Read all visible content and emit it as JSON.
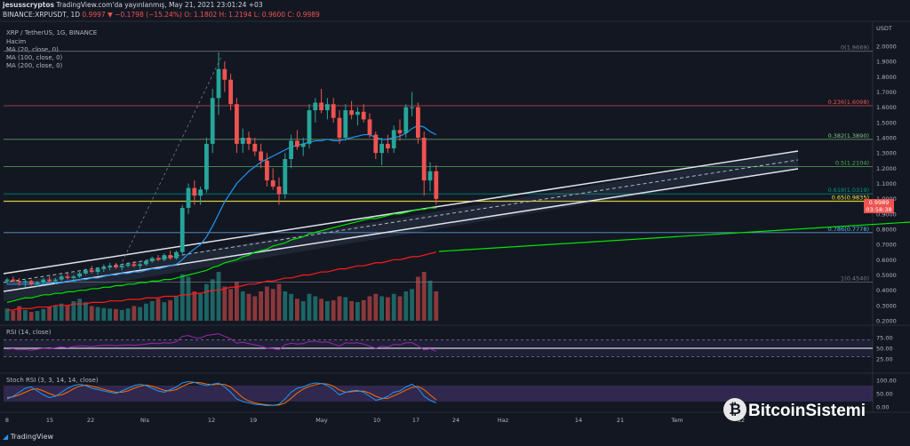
{
  "header": {
    "author": "jesusscryptos",
    "published": "TradingView.com'da yayınlanmış, May 21, 2021 23:01:24 +03",
    "ticker": "BINANCE:XRPUSDT, 1D",
    "ohlc": "0.9997 ▼ −0.1798 (−15.24%) O: 1.1802 H: 1.2194 L: 0.9600 C: 0.9989"
  },
  "symbol_line": "XRP / TetherUS, 1G, BINANCE",
  "indicators": [
    "Hacim",
    "MA (20, close, 0)",
    "MA (100, close, 0)",
    "MA (200, close, 0)"
  ],
  "panes": {
    "rsi_label": "RSI (14, close)",
    "stoch_label": "Stoch RSI (3, 3, 14, 14, close)"
  },
  "price_badges": {
    "current": "0.9989",
    "countdown": "03:58:38"
  },
  "footer": {
    "logo": "TradingView",
    "brand": "BitcoinSistemi"
  },
  "colors": {
    "background": "#131722",
    "up": "#26a69a",
    "down": "#ef5350",
    "ma20": "#2196f3",
    "ma100": "#00e600",
    "ma200": "#ff1a1a",
    "rsi": "#9c27b0"
  },
  "chart_data": {
    "type": "candlestick",
    "title": "XRP / TetherUS, 1G, BINANCE",
    "ylabel": "USDT",
    "y_axis_ticks": [
      "2.0000",
      "1.9000",
      "1.8000",
      "1.7000",
      "1.6000",
      "1.5000",
      "1.4000",
      "1.3000",
      "1.2000",
      "1.1000",
      "1.0000",
      "0.9000",
      "0.8000",
      "0.7000",
      "0.6000",
      "0.5000",
      "0.4000",
      "0.3000",
      "0.2000"
    ],
    "ylim": [
      0.2,
      2.05
    ],
    "x_axis_ticks": [
      "8",
      "15",
      "22",
      "Nis",
      "12",
      "19",
      "May",
      "10",
      "17",
      "24",
      "Haz",
      "14",
      "21",
      "Tem",
      "12"
    ],
    "fibonacci": [
      {
        "level": "0(1.9669)",
        "value": 1.9669,
        "color": "#787b86"
      },
      {
        "level": "0.236(1.6098)",
        "value": 1.6098,
        "color": "#ef5350"
      },
      {
        "level": "0.382(1.3890)",
        "value": 1.389,
        "color": "#81c784"
      },
      {
        "level": "0.5(1.2104)",
        "value": 1.2104,
        "color": "#4caf50"
      },
      {
        "level": "0.618(1.0319)",
        "value": 1.0319,
        "color": "#009688"
      },
      {
        "level": "0.65(0.9835)",
        "value": 0.9835,
        "color": "#ffeb3b"
      },
      {
        "level": "0.786(0.7778)",
        "value": 0.7778,
        "color": "#64b5f6"
      },
      {
        "level": "1(0.4540)",
        "value": 0.454,
        "color": "#787b86"
      }
    ],
    "candles_ohlc": [
      [
        0.46,
        0.48,
        0.44,
        0.47
      ],
      [
        0.47,
        0.49,
        0.45,
        0.46
      ],
      [
        0.46,
        0.48,
        0.43,
        0.45
      ],
      [
        0.45,
        0.47,
        0.42,
        0.46
      ],
      [
        0.46,
        0.47,
        0.43,
        0.44
      ],
      [
        0.44,
        0.46,
        0.42,
        0.45
      ],
      [
        0.45,
        0.48,
        0.44,
        0.47
      ],
      [
        0.47,
        0.49,
        0.45,
        0.46
      ],
      [
        0.46,
        0.48,
        0.44,
        0.47
      ],
      [
        0.47,
        0.5,
        0.46,
        0.49
      ],
      [
        0.49,
        0.51,
        0.47,
        0.48
      ],
      [
        0.48,
        0.5,
        0.46,
        0.49
      ],
      [
        0.49,
        0.52,
        0.48,
        0.51
      ],
      [
        0.51,
        0.54,
        0.5,
        0.53
      ],
      [
        0.53,
        0.56,
        0.51,
        0.52
      ],
      [
        0.52,
        0.55,
        0.5,
        0.54
      ],
      [
        0.54,
        0.57,
        0.52,
        0.55
      ],
      [
        0.55,
        0.58,
        0.53,
        0.56
      ],
      [
        0.56,
        0.58,
        0.54,
        0.55
      ],
      [
        0.55,
        0.57,
        0.53,
        0.56
      ],
      [
        0.56,
        0.58,
        0.55,
        0.57
      ],
      [
        0.57,
        0.59,
        0.55,
        0.56
      ],
      [
        0.56,
        0.58,
        0.54,
        0.57
      ],
      [
        0.57,
        0.6,
        0.56,
        0.59
      ],
      [
        0.59,
        0.62,
        0.58,
        0.61
      ],
      [
        0.61,
        0.63,
        0.59,
        0.6
      ],
      [
        0.6,
        0.64,
        0.59,
        0.63
      ],
      [
        0.63,
        0.66,
        0.6,
        0.61
      ],
      [
        0.61,
        0.66,
        0.6,
        0.65
      ],
      [
        0.65,
        0.96,
        0.63,
        0.94
      ],
      [
        0.94,
        1.1,
        0.9,
        1.07
      ],
      [
        1.07,
        1.12,
        0.96,
        1.02
      ],
      [
        1.02,
        1.08,
        0.96,
        1.06
      ],
      [
        1.06,
        1.4,
        1.04,
        1.36
      ],
      [
        1.36,
        1.72,
        1.3,
        1.66
      ],
      [
        1.66,
        1.96,
        1.55,
        1.85
      ],
      [
        1.85,
        1.9,
        1.7,
        1.78
      ],
      [
        1.78,
        1.82,
        1.58,
        1.62
      ],
      [
        1.62,
        1.66,
        1.3,
        1.36
      ],
      [
        1.36,
        1.46,
        1.3,
        1.4
      ],
      [
        1.4,
        1.44,
        1.32,
        1.36
      ],
      [
        1.36,
        1.4,
        1.28,
        1.31
      ],
      [
        1.31,
        1.36,
        1.2,
        1.25
      ],
      [
        1.25,
        1.3,
        1.08,
        1.12
      ],
      [
        1.12,
        1.2,
        1.06,
        1.08
      ],
      [
        1.08,
        1.14,
        0.96,
        1.03
      ],
      [
        1.03,
        1.3,
        1.0,
        1.26
      ],
      [
        1.26,
        1.42,
        1.2,
        1.38
      ],
      [
        1.38,
        1.45,
        1.32,
        1.34
      ],
      [
        1.34,
        1.4,
        1.28,
        1.36
      ],
      [
        1.36,
        1.62,
        1.33,
        1.58
      ],
      [
        1.58,
        1.66,
        1.5,
        1.63
      ],
      [
        1.63,
        1.72,
        1.56,
        1.58
      ],
      [
        1.58,
        1.66,
        1.52,
        1.62
      ],
      [
        1.62,
        1.66,
        1.5,
        1.53
      ],
      [
        1.53,
        1.58,
        1.36,
        1.4
      ],
      [
        1.4,
        1.62,
        1.38,
        1.58
      ],
      [
        1.58,
        1.64,
        1.52,
        1.55
      ],
      [
        1.55,
        1.6,
        1.48,
        1.57
      ],
      [
        1.57,
        1.62,
        1.5,
        1.52
      ],
      [
        1.52,
        1.56,
        1.4,
        1.42
      ],
      [
        1.42,
        1.44,
        1.26,
        1.3
      ],
      [
        1.3,
        1.4,
        1.22,
        1.36
      ],
      [
        1.36,
        1.42,
        1.3,
        1.33
      ],
      [
        1.33,
        1.48,
        1.3,
        1.45
      ],
      [
        1.45,
        1.52,
        1.38,
        1.43
      ],
      [
        1.43,
        1.62,
        1.4,
        1.6
      ],
      [
        1.6,
        1.7,
        1.54,
        1.6
      ],
      [
        1.6,
        1.63,
        1.36,
        1.4
      ],
      [
        1.4,
        1.44,
        1.02,
        1.12
      ],
      [
        1.12,
        1.24,
        1.05,
        1.18
      ],
      [
        1.18,
        1.22,
        0.96,
        0.999
      ]
    ],
    "volume_relative": [
      0.25,
      0.2,
      0.3,
      0.22,
      0.18,
      0.2,
      0.24,
      0.28,
      0.3,
      0.35,
      0.32,
      0.4,
      0.45,
      0.38,
      0.3,
      0.28,
      0.26,
      0.25,
      0.24,
      0.22,
      0.25,
      0.3,
      0.28,
      0.35,
      0.4,
      0.45,
      0.38,
      0.42,
      0.5,
      0.95,
      0.9,
      0.6,
      0.55,
      0.75,
      0.85,
      1.0,
      0.7,
      0.65,
      0.8,
      0.6,
      0.55,
      0.5,
      0.6,
      0.7,
      0.65,
      0.75,
      0.6,
      0.55,
      0.45,
      0.4,
      0.55,
      0.5,
      0.45,
      0.4,
      0.42,
      0.5,
      0.48,
      0.4,
      0.38,
      0.42,
      0.5,
      0.55,
      0.5,
      0.48,
      0.55,
      0.5,
      0.6,
      0.65,
      0.9,
      1.0,
      0.82,
      0.6
    ],
    "ma20": [
      0.44,
      0.44,
      0.44,
      0.44,
      0.44,
      0.44,
      0.44,
      0.45,
      0.45,
      0.45,
      0.46,
      0.46,
      0.47,
      0.47,
      0.48,
      0.48,
      0.49,
      0.5,
      0.5,
      0.51,
      0.51,
      0.52,
      0.52,
      0.53,
      0.54,
      0.54,
      0.55,
      0.56,
      0.57,
      0.6,
      0.64,
      0.67,
      0.7,
      0.75,
      0.82,
      0.9,
      0.98,
      1.04,
      1.1,
      1.14,
      1.18,
      1.21,
      1.24,
      1.26,
      1.28,
      1.3,
      1.32,
      1.34,
      1.35,
      1.36,
      1.37,
      1.38,
      1.38,
      1.39,
      1.38,
      1.38,
      1.39,
      1.4,
      1.41,
      1.42,
      1.42,
      1.4,
      1.39,
      1.39,
      1.4,
      1.41,
      1.43,
      1.46,
      1.48,
      1.47,
      1.44,
      1.42
    ],
    "ma100": [
      0.32,
      0.33,
      0.34,
      0.35,
      0.35,
      0.36,
      0.37,
      0.37,
      0.38,
      0.38,
      0.39,
      0.39,
      0.4,
      0.4,
      0.41,
      0.41,
      0.42,
      0.42,
      0.43,
      0.43,
      0.44,
      0.44,
      0.45,
      0.45,
      0.46,
      0.46,
      0.47,
      0.47,
      0.48,
      0.49,
      0.5,
      0.51,
      0.52,
      0.53,
      0.55,
      0.56,
      0.58,
      0.59,
      0.6,
      0.62,
      0.63,
      0.65,
      0.66,
      0.67,
      0.69,
      0.7,
      0.71,
      0.73,
      0.74,
      0.75,
      0.77,
      0.78,
      0.79,
      0.8,
      0.81,
      0.82,
      0.83,
      0.84,
      0.85,
      0.86,
      0.87,
      0.87,
      0.88,
      0.89,
      0.9,
      0.9,
      0.91,
      0.92,
      0.93,
      0.93,
      0.94,
      0.94
    ],
    "ma200": [
      0.27,
      0.27,
      0.28,
      0.28,
      0.28,
      0.29,
      0.29,
      0.29,
      0.3,
      0.3,
      0.3,
      0.31,
      0.31,
      0.31,
      0.32,
      0.32,
      0.32,
      0.33,
      0.33,
      0.33,
      0.34,
      0.34,
      0.34,
      0.35,
      0.35,
      0.35,
      0.36,
      0.36,
      0.36,
      0.37,
      0.37,
      0.38,
      0.38,
      0.39,
      0.4,
      0.4,
      0.41,
      0.42,
      0.42,
      0.43,
      0.44,
      0.44,
      0.45,
      0.46,
      0.46,
      0.47,
      0.48,
      0.48,
      0.49,
      0.5,
      0.5,
      0.51,
      0.52,
      0.52,
      0.53,
      0.54,
      0.54,
      0.55,
      0.56,
      0.56,
      0.57,
      0.58,
      0.58,
      0.59,
      0.6,
      0.6,
      0.61,
      0.62,
      0.62,
      0.63,
      0.64,
      0.65
    ],
    "rsi": {
      "label": "RSI (14, close)",
      "ticks": [
        "75.00",
        "50.00",
        "25.00"
      ],
      "bands": [
        70,
        30
      ],
      "mid": 50,
      "values": [
        48,
        49,
        46,
        47,
        45,
        48,
        50,
        49,
        51,
        53,
        51,
        54,
        56,
        55,
        54,
        56,
        57,
        57,
        56,
        57,
        58,
        57,
        58,
        60,
        62,
        61,
        63,
        62,
        65,
        78,
        80,
        75,
        74,
        80,
        82,
        84,
        78,
        72,
        62,
        64,
        61,
        58,
        55,
        50,
        49,
        47,
        58,
        62,
        60,
        61,
        66,
        67,
        64,
        65,
        60,
        55,
        63,
        62,
        63,
        60,
        55,
        50,
        55,
        53,
        59,
        58,
        63,
        63,
        56,
        46,
        49,
        43
      ]
    },
    "stoch_rsi": {
      "label": "Stoch RSI (3, 3, 14, 14, close)",
      "ticks": [
        "100.00",
        "50.00",
        "0.00"
      ],
      "k": [
        30,
        40,
        55,
        70,
        75,
        60,
        45,
        35,
        40,
        55,
        70,
        80,
        85,
        80,
        70,
        65,
        60,
        55,
        50,
        60,
        70,
        80,
        85,
        80,
        70,
        60,
        55,
        65,
        75,
        90,
        95,
        92,
        85,
        80,
        85,
        90,
        75,
        55,
        30,
        20,
        15,
        10,
        8,
        5,
        6,
        10,
        30,
        55,
        70,
        75,
        85,
        90,
        88,
        80,
        65,
        45,
        55,
        60,
        62,
        55,
        40,
        25,
        30,
        40,
        55,
        60,
        75,
        85,
        70,
        40,
        25,
        15
      ],
      "d": [
        35,
        38,
        45,
        55,
        65,
        68,
        60,
        50,
        42,
        45,
        55,
        68,
        78,
        82,
        78,
        72,
        66,
        60,
        55,
        55,
        60,
        70,
        78,
        82,
        78,
        70,
        62,
        60,
        65,
        77,
        87,
        92,
        91,
        86,
        83,
        85,
        84,
        75,
        55,
        35,
        22,
        15,
        11,
        8,
        6,
        7,
        15,
        32,
        52,
        67,
        77,
        83,
        88,
        86,
        78,
        63,
        55,
        57,
        59,
        59,
        52,
        40,
        32,
        32,
        42,
        52,
        63,
        73,
        77,
        65,
        45,
        27
      ]
    }
  }
}
